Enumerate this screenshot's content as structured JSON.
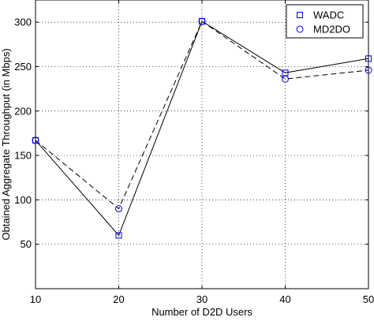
{
  "chart_data": {
    "type": "line",
    "title": "",
    "xlabel": "Number of D2D Users",
    "ylabel": "Obtained Aggregate Throughput (in Mbps)",
    "xlim": [
      10,
      50
    ],
    "ylim": [
      0,
      325
    ],
    "x_ticks": [
      "10",
      "20",
      "30",
      "40",
      "50"
    ],
    "y_ticks": [
      "50",
      "100",
      "150",
      "200",
      "250",
      "300"
    ],
    "grid": true,
    "legend_position": "top-right",
    "x": [
      10,
      20,
      30,
      40,
      50
    ],
    "series": [
      {
        "name": "WADC",
        "values": [
          167,
          60,
          301,
          243,
          259
        ],
        "line_style": "solid",
        "marker": "square",
        "color": "#0000ff"
      },
      {
        "name": "MD2DO",
        "values": [
          167,
          90,
          301,
          236,
          246
        ],
        "line_style": "dashed",
        "marker": "circle",
        "color": "#0000ff"
      }
    ]
  }
}
